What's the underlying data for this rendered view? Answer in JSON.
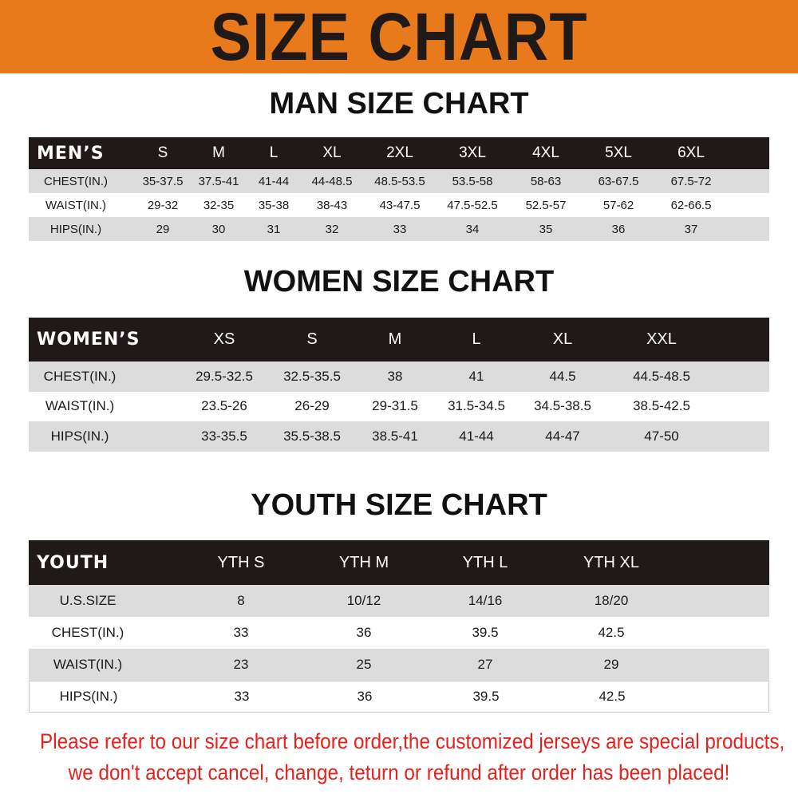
{
  "banner": {
    "title": "SIZE CHART",
    "color": "#e97a1c"
  },
  "men": {
    "title": "MAN SIZE CHART",
    "header_label": "MEN’S",
    "sizes": [
      "S",
      "M",
      "L",
      "XL",
      "2XL",
      "3XL",
      "4XL",
      "5XL",
      "6XL"
    ],
    "rows": [
      {
        "label": "CHEST(IN.)",
        "values": [
          "35-37.5",
          "37.5-41",
          "41-44",
          "44-48.5",
          "48.5-53.5",
          "53.5-58",
          "58-63",
          "63-67.5",
          "67.5-72"
        ]
      },
      {
        "label": "WAIST(IN.)",
        "values": [
          "29-32",
          "32-35",
          "35-38",
          "38-43",
          "43-47.5",
          "47.5-52.5",
          "52.5-57",
          "57-62",
          "62-66.5"
        ]
      },
      {
        "label": "HIPS(IN.)",
        "values": [
          "29",
          "30",
          "31",
          "32",
          "33",
          "34",
          "35",
          "36",
          "37"
        ]
      }
    ]
  },
  "women": {
    "title": "WOMEN SIZE CHART",
    "header_label": "WOMEN’S",
    "sizes": [
      "XS",
      "S",
      "M",
      "L",
      "XL",
      "XXL"
    ],
    "rows": [
      {
        "label": "CHEST(IN.)",
        "values": [
          "29.5-32.5",
          "32.5-35.5",
          "38",
          "41",
          "44.5",
          "44.5-48.5"
        ]
      },
      {
        "label": "WAIST(IN.)",
        "values": [
          "23.5-26",
          "26-29",
          "29-31.5",
          "31.5-34.5",
          "34.5-38.5",
          "38.5-42.5"
        ]
      },
      {
        "label": "HIPS(IN.)",
        "values": [
          "33-35.5",
          "35.5-38.5",
          "38.5-41",
          "41-44",
          "44-47",
          "47-50"
        ]
      }
    ]
  },
  "youth": {
    "title": "YOUTH SIZE CHART",
    "header_label": "YOUTH",
    "sizes": [
      "YTH S",
      "YTH M",
      "YTH L",
      "YTH XL"
    ],
    "rows": [
      {
        "label": "U.S.SIZE",
        "values": [
          "8",
          "10/12",
          "14/16",
          "18/20"
        ]
      },
      {
        "label": "CHEST(IN.)",
        "values": [
          "33",
          "36",
          "39.5",
          "42.5"
        ]
      },
      {
        "label": "WAIST(IN.)",
        "values": [
          "23",
          "25",
          "27",
          "29"
        ]
      },
      {
        "label": "HIPS(IN.)",
        "values": [
          "33",
          "36",
          "39.5",
          "42.5"
        ]
      }
    ]
  },
  "notice": {
    "line1": "Please refer to our size chart before order,the customized jerseys are special products,",
    "line2": "we don't accept cancel, change, teturn or refund after order has been placed!",
    "color": "#e5211b"
  }
}
